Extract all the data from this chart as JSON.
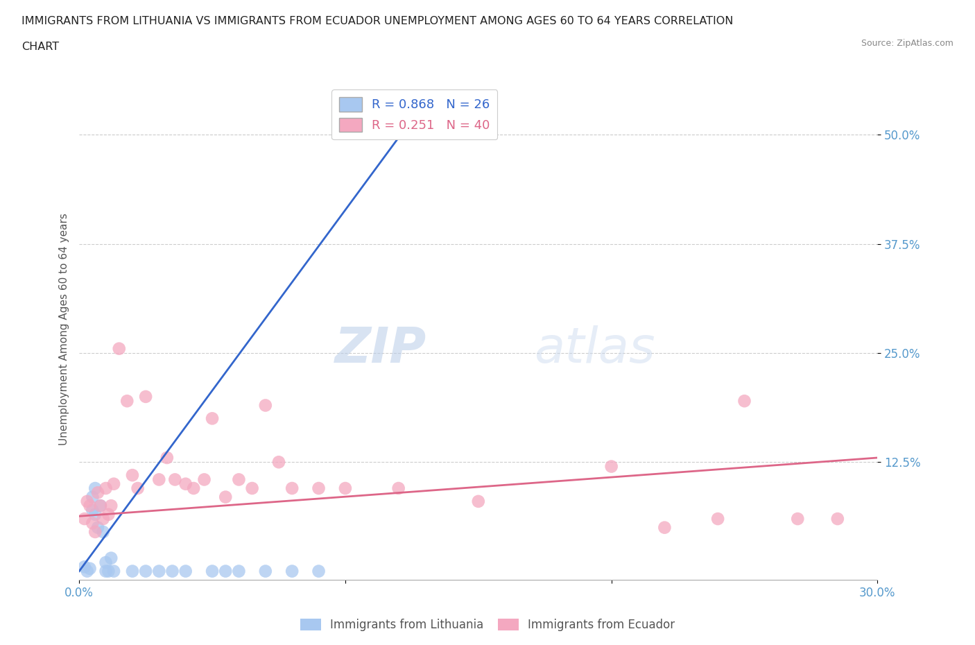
{
  "title_line1": "IMMIGRANTS FROM LITHUANIA VS IMMIGRANTS FROM ECUADOR UNEMPLOYMENT AMONG AGES 60 TO 64 YEARS CORRELATION",
  "title_line2": "CHART",
  "source": "Source: ZipAtlas.com",
  "ylabel": "Unemployment Among Ages 60 to 64 years",
  "ytick_labels": [
    "12.5%",
    "25.0%",
    "37.5%",
    "50.0%"
  ],
  "ytick_values": [
    0.125,
    0.25,
    0.375,
    0.5
  ],
  "xlim": [
    0.0,
    0.3
  ],
  "ylim": [
    -0.01,
    0.565
  ],
  "watermark_zip": "ZIP",
  "watermark_atlas": "atlas",
  "legend_r1": "R = 0.868",
  "legend_n1": "N = 26",
  "legend_r2": "R = 0.251",
  "legend_n2": "N = 40",
  "legend_label1": "Immigrants from Lithuania",
  "legend_label2": "Immigrants from Ecuador",
  "color_lithuania": "#a8c8f0",
  "color_ecuador": "#f4a8c0",
  "color_line_lithuania": "#3366cc",
  "color_line_ecuador": "#dd6688",
  "background_color": "#ffffff",
  "grid_color": "#cccccc",
  "title_color": "#222222",
  "axis_label_color": "#555555",
  "tick_color": "#5599cc",
  "lith_line_x": [
    0.0,
    0.122
  ],
  "lith_line_y": [
    0.0,
    0.505
  ],
  "ecua_line_x": [
    0.0,
    0.3
  ],
  "ecua_line_y": [
    0.063,
    0.13
  ],
  "lithuania_x": [
    0.002,
    0.003,
    0.004,
    0.005,
    0.005,
    0.006,
    0.006,
    0.007,
    0.008,
    0.009,
    0.01,
    0.01,
    0.011,
    0.012,
    0.013,
    0.02,
    0.025,
    0.03,
    0.035,
    0.04,
    0.05,
    0.055,
    0.06,
    0.07,
    0.08,
    0.09
  ],
  "lithuania_y": [
    0.005,
    0.0,
    0.003,
    0.07,
    0.085,
    0.065,
    0.095,
    0.05,
    0.075,
    0.045,
    0.01,
    0.0,
    0.0,
    0.015,
    0.0,
    0.0,
    0.0,
    0.0,
    0.0,
    0.0,
    0.0,
    0.0,
    0.0,
    0.0,
    0.0,
    0.0
  ],
  "ecuador_x": [
    0.002,
    0.003,
    0.004,
    0.005,
    0.006,
    0.007,
    0.008,
    0.009,
    0.01,
    0.011,
    0.012,
    0.013,
    0.015,
    0.018,
    0.02,
    0.022,
    0.025,
    0.03,
    0.033,
    0.036,
    0.04,
    0.043,
    0.047,
    0.05,
    0.055,
    0.06,
    0.065,
    0.07,
    0.075,
    0.08,
    0.09,
    0.1,
    0.12,
    0.15,
    0.2,
    0.22,
    0.24,
    0.25,
    0.27,
    0.285
  ],
  "ecuador_y": [
    0.06,
    0.08,
    0.075,
    0.055,
    0.045,
    0.09,
    0.075,
    0.06,
    0.095,
    0.065,
    0.075,
    0.1,
    0.255,
    0.195,
    0.11,
    0.095,
    0.2,
    0.105,
    0.13,
    0.105,
    0.1,
    0.095,
    0.105,
    0.175,
    0.085,
    0.105,
    0.095,
    0.19,
    0.125,
    0.095,
    0.095,
    0.095,
    0.095,
    0.08,
    0.12,
    0.05,
    0.06,
    0.195,
    0.06,
    0.06
  ]
}
